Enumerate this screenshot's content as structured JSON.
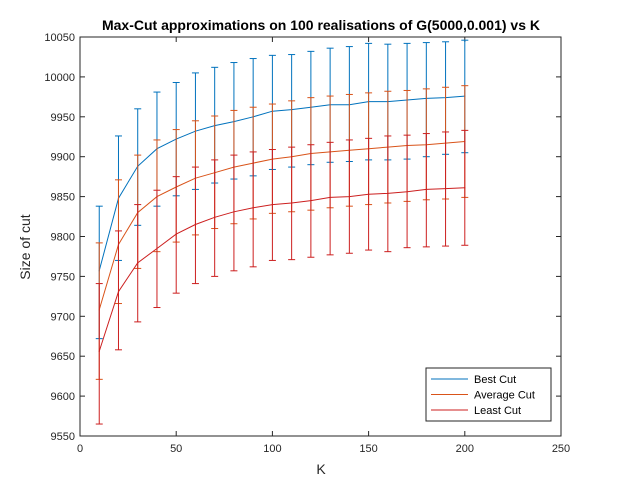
{
  "chart_data": {
    "type": "line",
    "title": "Max-Cut approximations on 100 realisations of G(5000,0.001) vs K",
    "xlabel": "K",
    "ylabel": "Size of cut",
    "xlim": [
      0,
      250
    ],
    "ylim": [
      9550,
      10050
    ],
    "xticks": [
      "0",
      "50",
      "100",
      "150",
      "200",
      "250"
    ],
    "yticks": [
      "9550",
      "9600",
      "9650",
      "9700",
      "9750",
      "9800",
      "9850",
      "9900",
      "9950",
      "10000",
      "10050"
    ],
    "legend_position": "bottom-right",
    "x": [
      10,
      20,
      30,
      40,
      50,
      60,
      70,
      80,
      90,
      100,
      110,
      120,
      130,
      140,
      150,
      160,
      170,
      180,
      190,
      200
    ],
    "series": [
      {
        "name": "Best Cut",
        "color": "#0072BD",
        "values": [
          9757,
          9848,
          9888,
          9910,
          9922,
          9932,
          9939,
          9944,
          9950,
          9957,
          9959,
          9962,
          9965,
          9965,
          9969,
          9969,
          9971,
          9973,
          9974,
          9976
        ],
        "upper": [
          9838,
          9926,
          9960,
          9981,
          9993,
          10005,
          10012,
          10018,
          10023,
          10027,
          10028,
          10032,
          10036,
          10038,
          10042,
          10041,
          10042,
          10043,
          10044,
          10046
        ],
        "lower": [
          9672,
          9770,
          9814,
          9838,
          9851,
          9859,
          9867,
          9872,
          9876,
          9884,
          9887,
          9890,
          9893,
          9894,
          9896,
          9896,
          9897,
          9900,
          9903,
          9905
        ]
      },
      {
        "name": "Average Cut",
        "color": "#D95319",
        "values": [
          9708,
          9790,
          9830,
          9850,
          9862,
          9873,
          9880,
          9887,
          9892,
          9897,
          9900,
          9904,
          9906,
          9908,
          9910,
          9912,
          9914,
          9915,
          9917,
          9919
        ],
        "upper": [
          9792,
          9871,
          9902,
          9921,
          9934,
          9945,
          9951,
          9958,
          9962,
          9966,
          9970,
          9974,
          9976,
          9978,
          9980,
          9982,
          9983,
          9985,
          9987,
          9989
        ],
        "lower": [
          9621,
          9716,
          9760,
          9781,
          9793,
          9802,
          9810,
          9816,
          9822,
          9829,
          9831,
          9833,
          9836,
          9838,
          9840,
          9842,
          9844,
          9846,
          9847,
          9849
        ]
      },
      {
        "name": "Least Cut",
        "color": "#CC1F1F",
        "values": [
          9656,
          9731,
          9767,
          9785,
          9803,
          9815,
          9824,
          9831,
          9836,
          9840,
          9842,
          9845,
          9849,
          9850,
          9853,
          9854,
          9856,
          9859,
          9860,
          9861
        ],
        "upper": [
          9741,
          9807,
          9840,
          9858,
          9875,
          9887,
          9896,
          9902,
          9906,
          9909,
          9912,
          9915,
          9918,
          9921,
          9923,
          9926,
          9927,
          9929,
          9931,
          9933
        ],
        "lower": [
          9565,
          9658,
          9693,
          9711,
          9729,
          9741,
          9750,
          9757,
          9762,
          9770,
          9771,
          9774,
          9777,
          9779,
          9783,
          9781,
          9786,
          9787,
          9788,
          9789
        ]
      }
    ]
  }
}
